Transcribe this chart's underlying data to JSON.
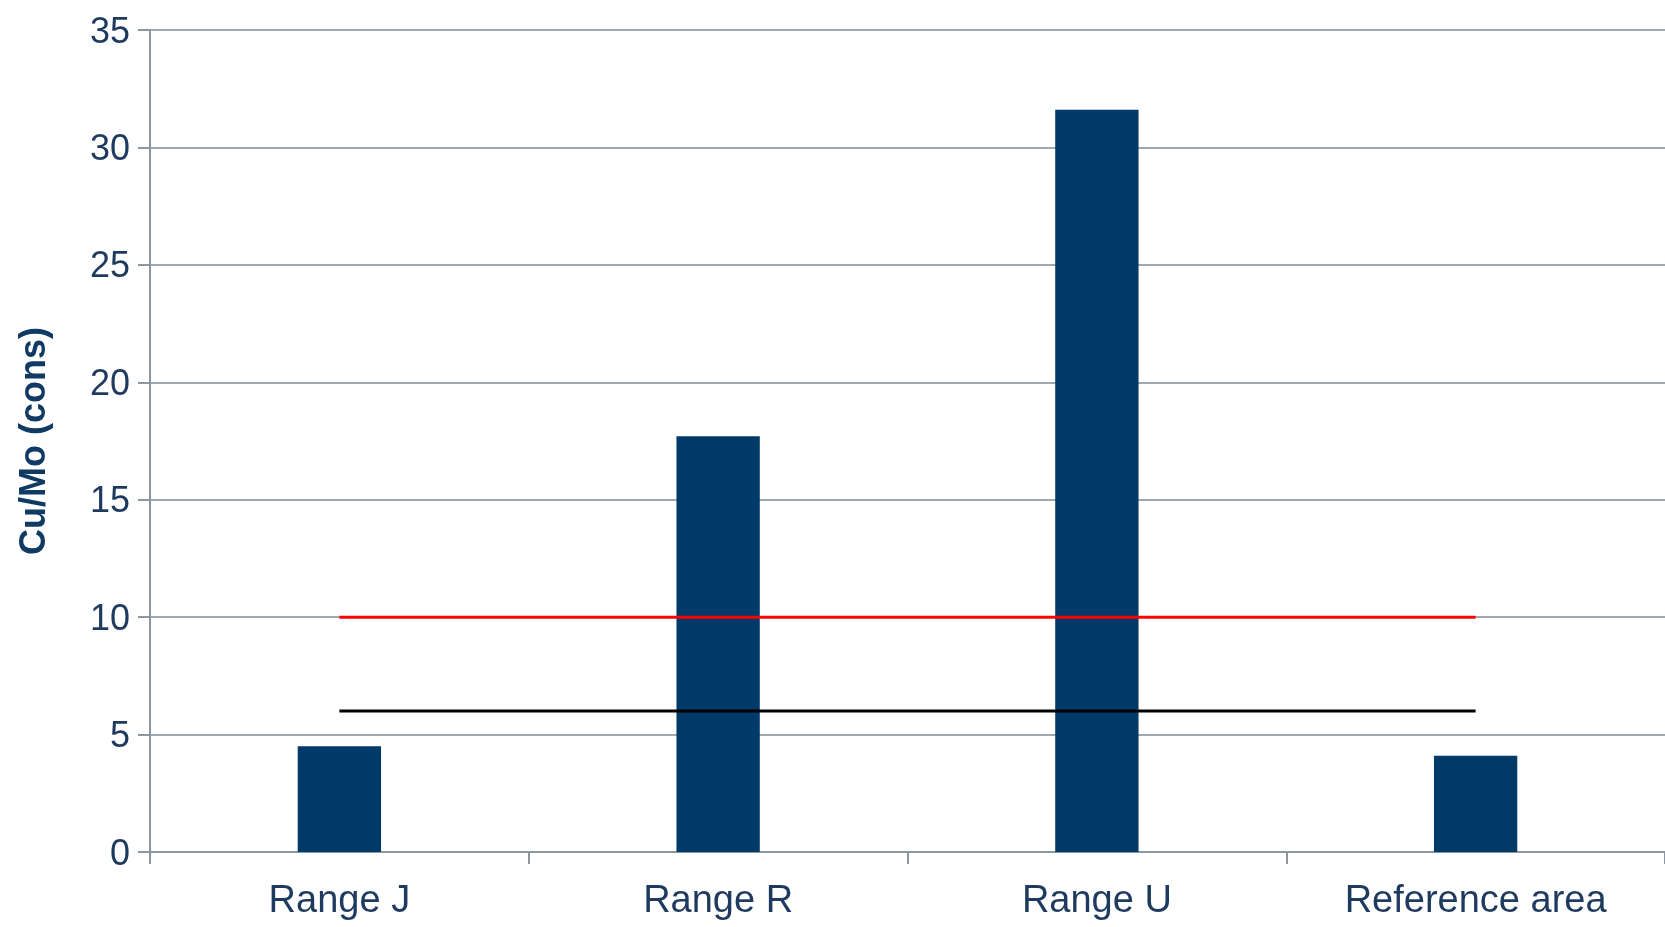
{
  "chart_data": {
    "type": "bar",
    "ylabel": "Cu/Mo (cons)",
    "categories": [
      "Range J",
      "Range R",
      "Range U",
      "Reference area"
    ],
    "series": [
      {
        "color": "#003a68",
        "values": [
          4.5,
          17.7,
          31.6,
          4.1
        ]
      },
      {
        "type": "line",
        "color": "#ff0000",
        "values": [
          10,
          10,
          10,
          10
        ]
      },
      {
        "type": "line",
        "color": "#000000",
        "values": [
          6,
          6,
          6,
          6
        ]
      }
    ],
    "ylim": [
      0,
      35
    ],
    "yticks": [
      0,
      5,
      10,
      15,
      20,
      25,
      30,
      35
    ],
    "grid": "y",
    "marker": "none"
  }
}
